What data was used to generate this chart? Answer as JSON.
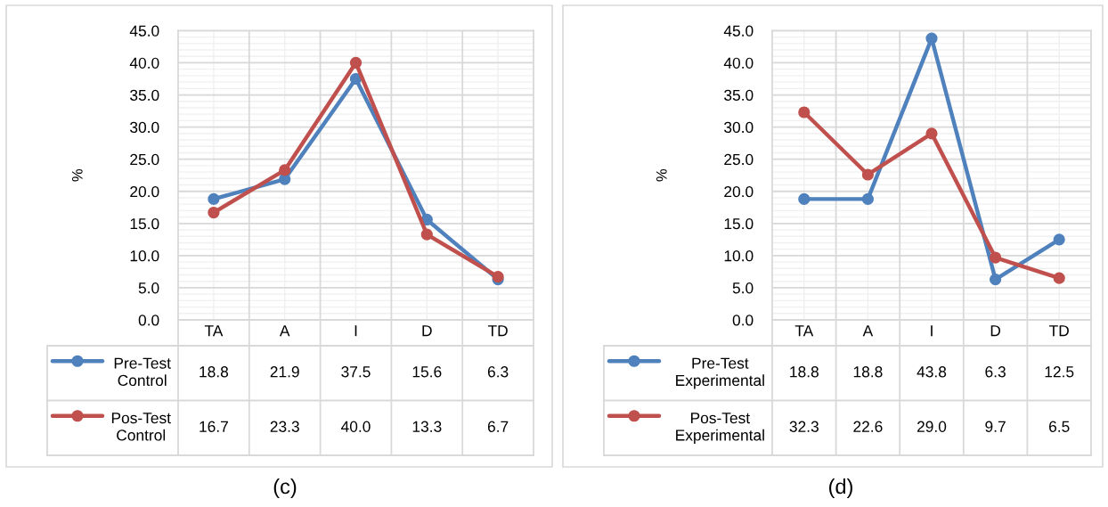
{
  "chart_data": [
    {
      "type": "line",
      "title": "(c)",
      "ylabel": "%",
      "categories": [
        "TA",
        "A",
        "I",
        "D",
        "TD"
      ],
      "series": [
        {
          "name": "Pre-Test Control",
          "color": "#4f81bd",
          "values": [
            18.8,
            21.9,
            37.5,
            15.6,
            6.3
          ],
          "value_labels": [
            "18.8",
            "21.9",
            "37.5",
            "15.6",
            "6.3"
          ]
        },
        {
          "name": "Pos-Test Control",
          "color": "#c0504d",
          "values": [
            16.7,
            23.3,
            40.0,
            13.3,
            6.7
          ],
          "value_labels": [
            "16.7",
            "23.3",
            "40.0",
            "13.3",
            "6.7"
          ]
        }
      ],
      "ylim": [
        0,
        45
      ],
      "yticks": [
        {
          "value": 0,
          "label": "0.0"
        },
        {
          "value": 5,
          "label": "5.0"
        },
        {
          "value": 10,
          "label": "10.0"
        },
        {
          "value": 15,
          "label": "15.0"
        },
        {
          "value": 20,
          "label": "20.0"
        },
        {
          "value": 25,
          "label": "25.0"
        },
        {
          "value": 30,
          "label": "30.0"
        },
        {
          "value": 35,
          "label": "35.0"
        },
        {
          "value": 40,
          "label": "40.0"
        },
        {
          "value": 45,
          "label": "45.0"
        }
      ],
      "grid": true,
      "legend": "bottom left",
      "marker": "circle",
      "line_style": "solid"
    },
    {
      "type": "line",
      "title": "(d)",
      "ylabel": "%",
      "categories": [
        "TA",
        "A",
        "I",
        "D",
        "TD"
      ],
      "series": [
        {
          "name": "Pre-Test Experimental",
          "color": "#4f81bd",
          "values": [
            18.8,
            18.8,
            43.8,
            6.3,
            12.5
          ],
          "value_labels": [
            "18.8",
            "18.8",
            "43.8",
            "6.3",
            "12.5"
          ]
        },
        {
          "name": "Pos-Test Experimental",
          "color": "#c0504d",
          "values": [
            32.3,
            22.6,
            29.0,
            9.7,
            6.5
          ],
          "value_labels": [
            "32.3",
            "22.6",
            "29.0",
            "9.7",
            "6.5"
          ]
        }
      ],
      "ylim": [
        0,
        45
      ],
      "yticks": [
        {
          "value": 0,
          "label": "0.0"
        },
        {
          "value": 5,
          "label": "5.0"
        },
        {
          "value": 10,
          "label": "10.0"
        },
        {
          "value": 15,
          "label": "15.0"
        },
        {
          "value": 20,
          "label": "20.0"
        },
        {
          "value": 25,
          "label": "25.0"
        },
        {
          "value": 30,
          "label": "30.0"
        },
        {
          "value": 35,
          "label": "35.0"
        },
        {
          "value": 40,
          "label": "40.0"
        },
        {
          "value": 45,
          "label": "45.0"
        }
      ],
      "grid": true,
      "legend": "bottom left",
      "marker": "circle",
      "line_style": "solid"
    }
  ]
}
